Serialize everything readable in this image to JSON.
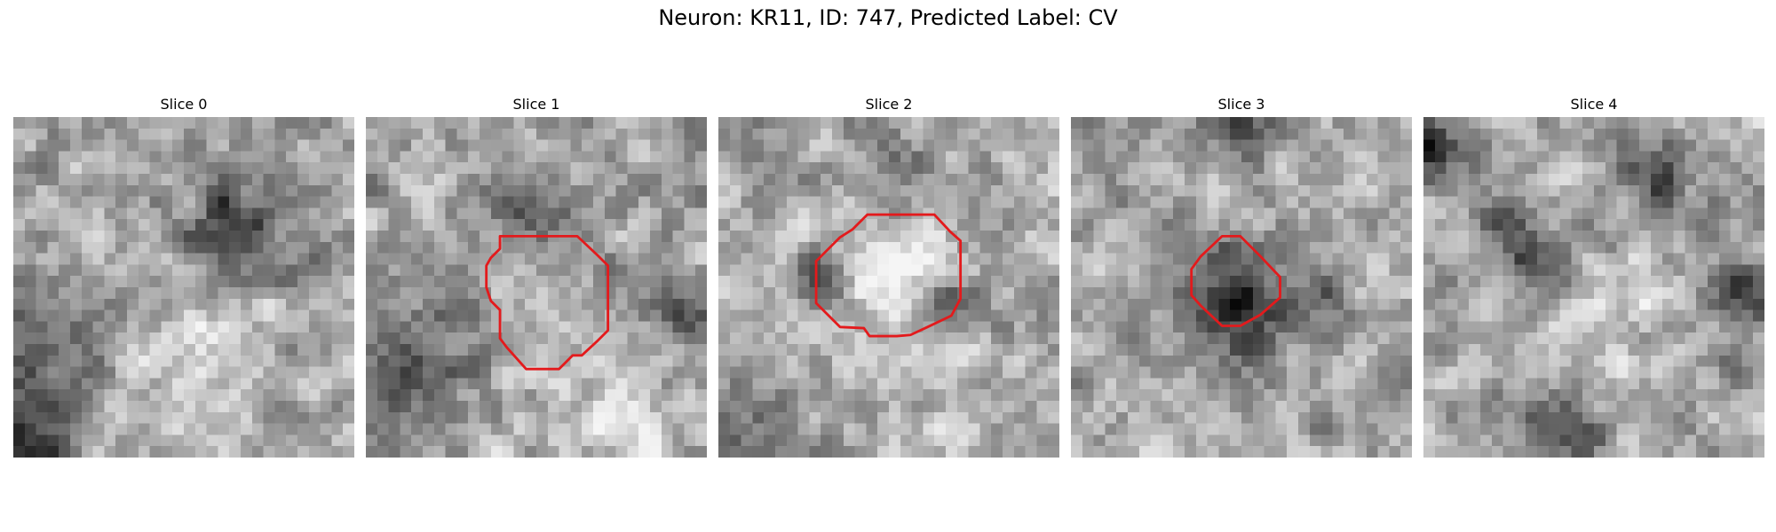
{
  "figure": {
    "title": "Neuron: KR11, ID: 747, Predicted Label: CV"
  },
  "grid_size": 30,
  "contour_color": "#e31a1c",
  "panels": [
    {
      "title": "Slice 0",
      "seed": 11,
      "blobs": [
        {
          "cx": 20,
          "cy": 9.5,
          "r": 3.3,
          "amp": -115
        },
        {
          "cx": 3.0,
          "cy": 19.5,
          "r": 4.0,
          "amp": -85
        },
        {
          "cx": 1.0,
          "cy": 28,
          "r": 3.0,
          "amp": -100
        },
        {
          "cx": 15,
          "cy": 22,
          "r": 5.0,
          "amp": 30
        }
      ],
      "contour": []
    },
    {
      "title": "Slice 1",
      "seed": 23,
      "blobs": [
        {
          "cx": 14,
          "cy": 8,
          "r": 2.5,
          "amp": -70
        },
        {
          "cx": 4,
          "cy": 21,
          "r": 4.0,
          "amp": -80
        },
        {
          "cx": 28.5,
          "cy": 17,
          "r": 2.2,
          "amp": -80
        },
        {
          "cx": 20,
          "cy": 25,
          "r": 4.0,
          "amp": 35
        }
      ],
      "contour": [
        [
          11.8,
          10.5
        ],
        [
          13.6,
          10.5
        ],
        [
          18.6,
          10.5
        ],
        [
          20.4,
          12.2
        ],
        [
          21.3,
          13.1
        ],
        [
          21.3,
          18.8
        ],
        [
          20.4,
          19.7
        ],
        [
          19.0,
          21.0
        ],
        [
          18.2,
          21.0
        ],
        [
          17.0,
          22.2
        ],
        [
          14.1,
          22.2
        ],
        [
          12.4,
          20.3
        ],
        [
          11.8,
          19.5
        ],
        [
          11.8,
          17.0
        ],
        [
          11.0,
          16.2
        ],
        [
          10.6,
          15.0
        ],
        [
          10.6,
          13.1
        ],
        [
          11.0,
          12.4
        ],
        [
          11.8,
          11.6
        ]
      ]
    },
    {
      "title": "Slice 2",
      "seed": 37,
      "blobs": [
        {
          "cx": 14.5,
          "cy": 14.5,
          "r": 4.0,
          "amp": 60
        },
        {
          "cx": 9,
          "cy": 14,
          "r": 1.6,
          "amp": -95
        },
        {
          "cx": 20.5,
          "cy": 16,
          "r": 1.5,
          "amp": -80
        },
        {
          "cx": 14.5,
          "cy": 4,
          "r": 2.0,
          "amp": -70
        },
        {
          "cx": 3,
          "cy": 27,
          "r": 2.5,
          "amp": -55
        }
      ],
      "contour": [
        [
          13.1,
          8.6
        ],
        [
          19.0,
          8.6
        ],
        [
          20.4,
          10.1
        ],
        [
          21.3,
          10.9
        ],
        [
          21.3,
          16.0
        ],
        [
          20.5,
          17.5
        ],
        [
          18.4,
          18.5
        ],
        [
          16.9,
          19.2
        ],
        [
          15.7,
          19.3
        ],
        [
          13.3,
          19.3
        ],
        [
          12.8,
          18.6
        ],
        [
          10.7,
          18.5
        ],
        [
          8.6,
          16.4
        ],
        [
          8.6,
          12.7
        ],
        [
          10.7,
          10.6
        ],
        [
          11.8,
          9.9
        ]
      ]
    },
    {
      "title": "Slice 3",
      "seed": 53,
      "blobs": [
        {
          "cx": 14.5,
          "cy": 15,
          "r": 3.0,
          "amp": -110
        },
        {
          "cx": 21.5,
          "cy": 16,
          "r": 2.0,
          "amp": -55
        },
        {
          "cx": 15.5,
          "cy": 1.5,
          "r": 2.0,
          "amp": -65
        },
        {
          "cx": 14.5,
          "cy": 20,
          "r": 3.0,
          "amp": -40
        }
      ],
      "contour": [
        [
          13.3,
          10.5
        ],
        [
          14.9,
          10.5
        ],
        [
          16.7,
          12.3
        ],
        [
          18.4,
          14.1
        ],
        [
          18.4,
          15.9
        ],
        [
          16.7,
          17.4
        ],
        [
          14.9,
          18.4
        ],
        [
          13.3,
          18.4
        ],
        [
          11.4,
          16.6
        ],
        [
          10.6,
          15.7
        ],
        [
          10.6,
          13.4
        ],
        [
          11.4,
          12.3
        ]
      ]
    },
    {
      "title": "Slice 4",
      "seed": 71,
      "blobs": [
        {
          "cx": 0.5,
          "cy": 3,
          "r": 2.0,
          "amp": -90
        },
        {
          "cx": 20,
          "cy": 5,
          "r": 2.5,
          "amp": -90
        },
        {
          "cx": 8,
          "cy": 12,
          "r": 3.0,
          "amp": -75
        },
        {
          "cx": 12,
          "cy": 27.5,
          "r": 2.2,
          "amp": -100
        },
        {
          "cx": 28.5,
          "cy": 16,
          "r": 2.5,
          "amp": -80
        },
        {
          "cx": 16,
          "cy": 18,
          "r": 4.0,
          "amp": 30
        }
      ],
      "contour": []
    }
  ]
}
